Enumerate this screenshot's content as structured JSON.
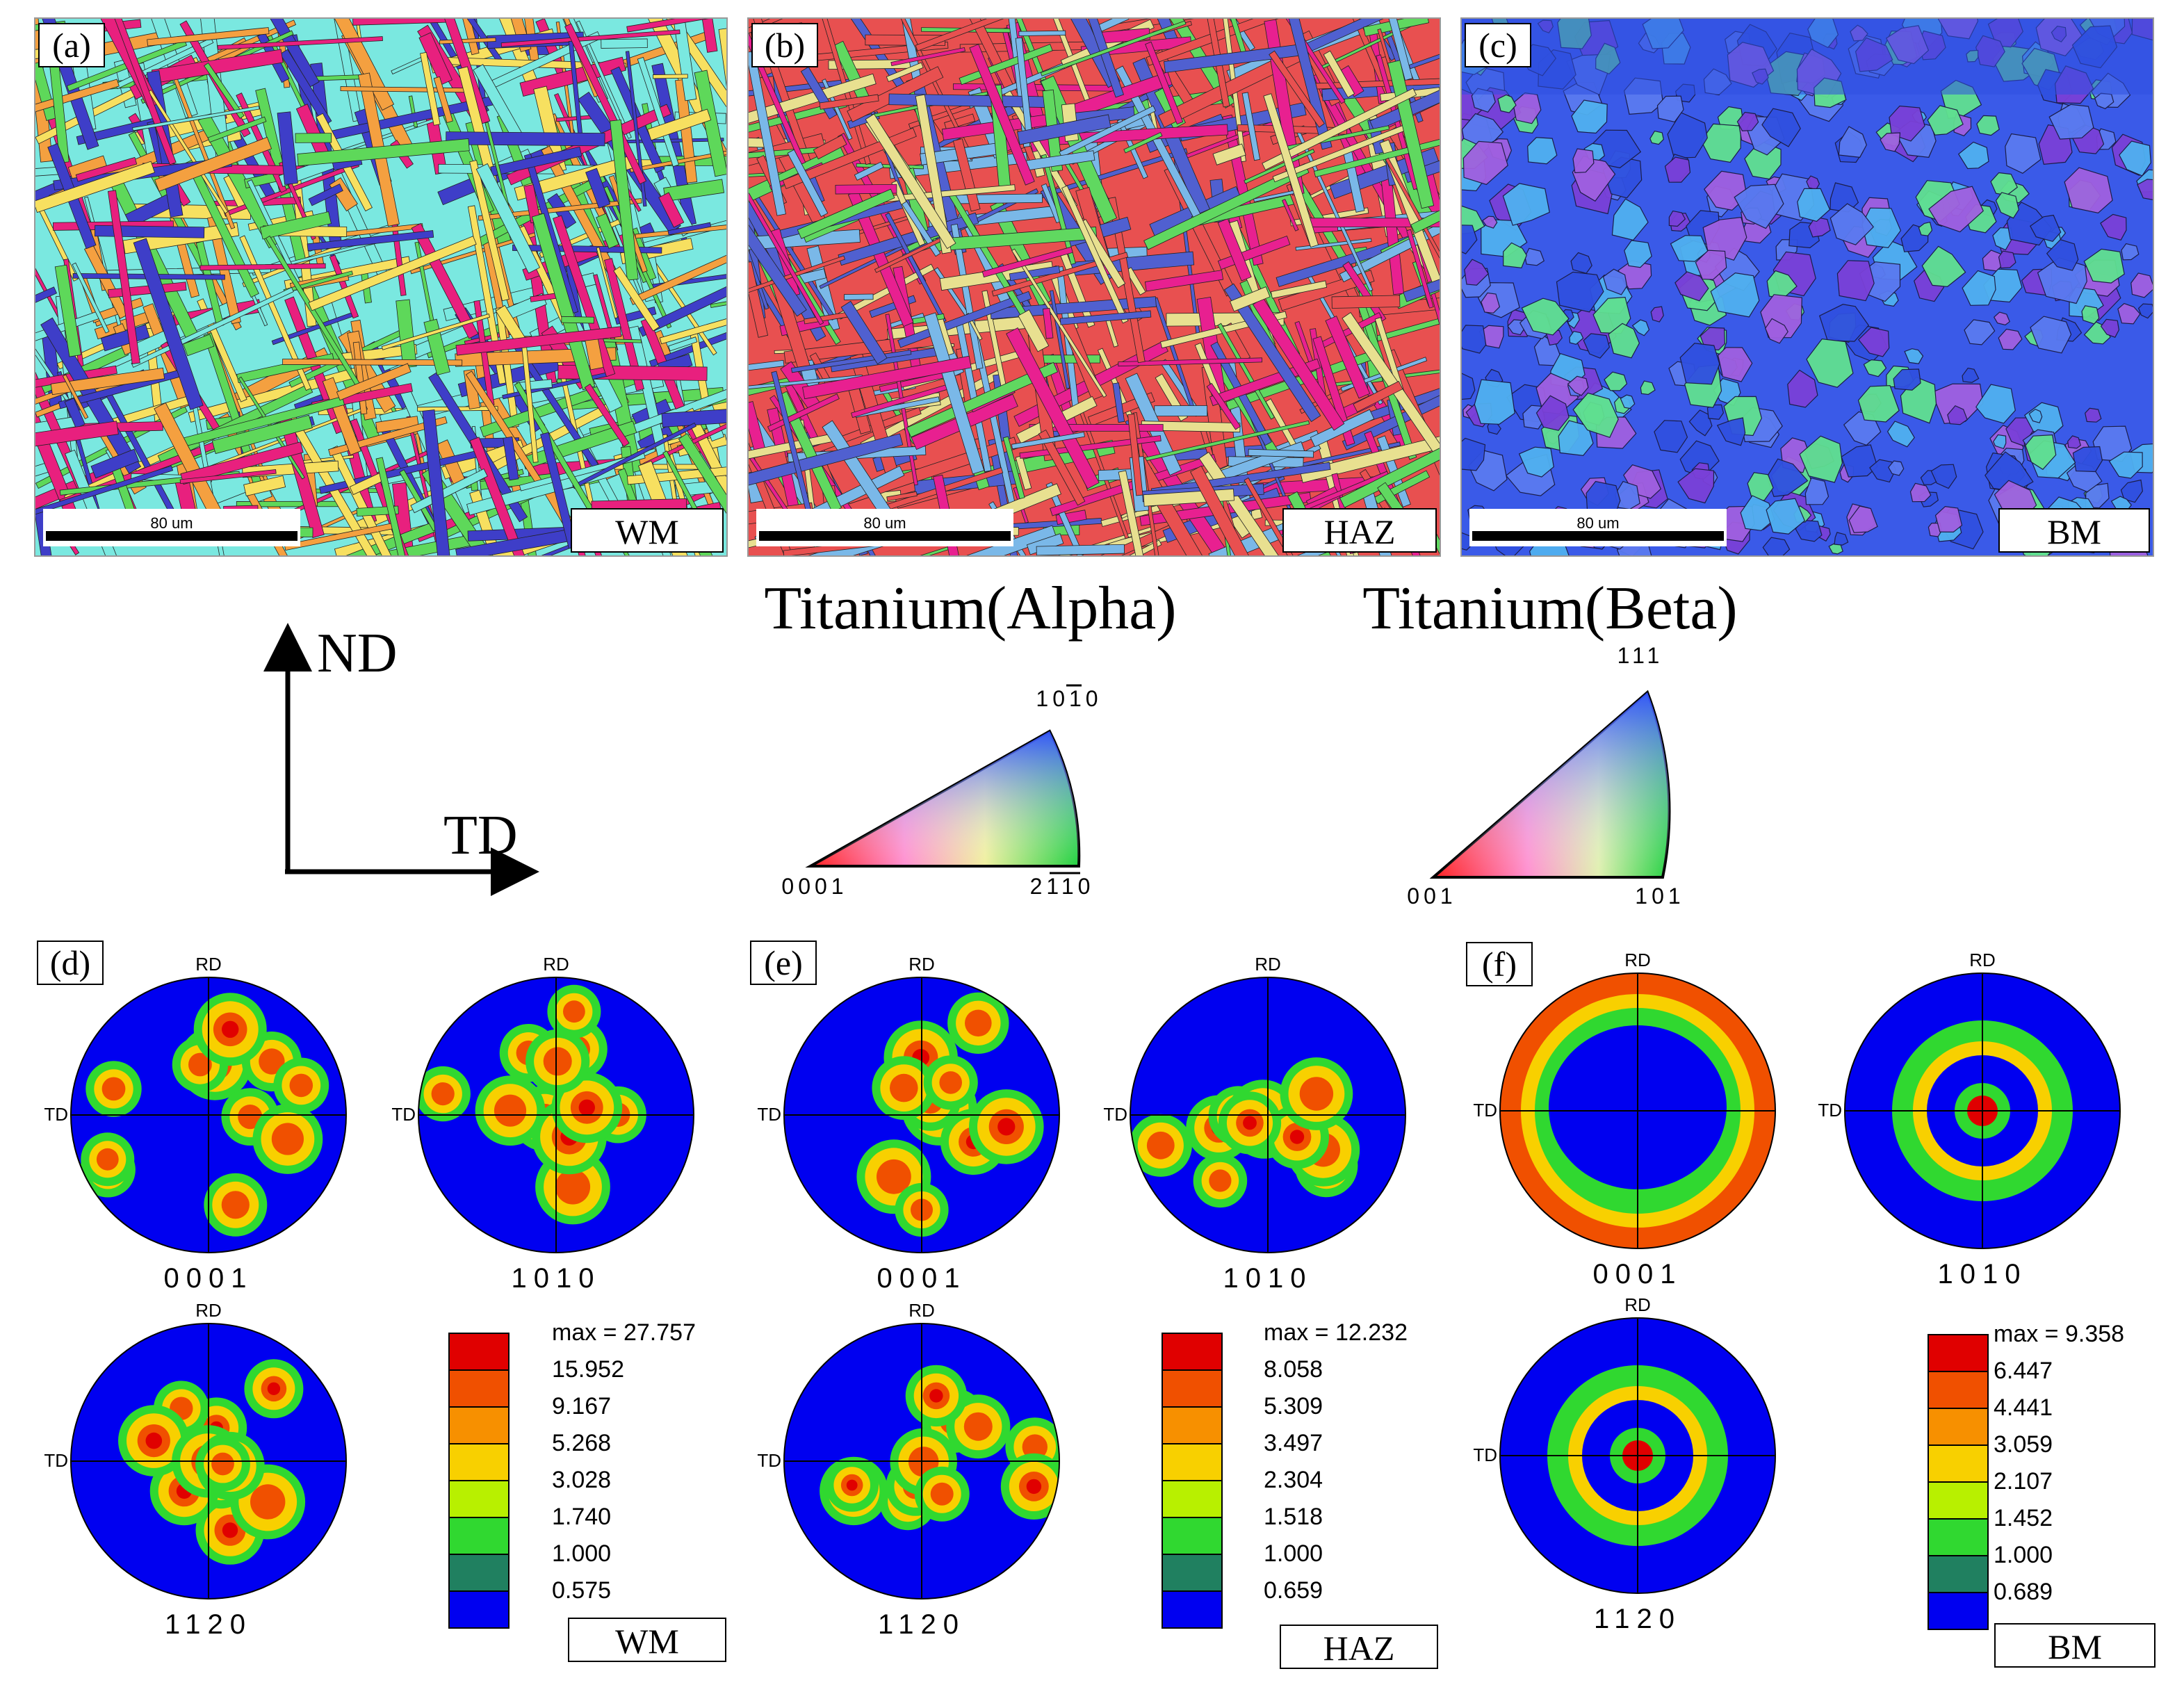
{
  "ebsd_maps": [
    {
      "id": "a",
      "panel_label": "(a)",
      "region": "WM",
      "scale_text": "80 um",
      "palette": [
        "#e8207e",
        "#5ed85a",
        "#7ae8e0",
        "#3e3ec8",
        "#f4a040",
        "#f7e060"
      ]
    },
    {
      "id": "b",
      "panel_label": "(b)",
      "region": "HAZ",
      "scale_text": "80 um",
      "palette": [
        "#e85050",
        "#e82090",
        "#7ab8e8",
        "#5060d0",
        "#60d860",
        "#e8e090"
      ]
    },
    {
      "id": "c",
      "panel_label": "(c)",
      "region": "BM",
      "scale_text": "80 um",
      "palette": [
        "#3050e0",
        "#5a7af0",
        "#50b0f0",
        "#60e090",
        "#7a40d8",
        "#a060e0"
      ]
    }
  ],
  "axes_legend": {
    "vertical": "ND",
    "horizontal": "TD"
  },
  "ipf_keys": [
    {
      "id": "alpha",
      "title": "Titanium(Alpha)",
      "corners": [
        "0001",
        "2110",
        "1010"
      ]
    },
    {
      "id": "beta",
      "title": "Titanium(Beta)",
      "corners": [
        "001",
        "101",
        "111"
      ]
    }
  ],
  "pole_figures": [
    {
      "id": "d",
      "panel_label": "(d)",
      "region": "WM",
      "figures": [
        {
          "label": "0001"
        },
        {
          "label": "1010"
        },
        {
          "label": "1120"
        }
      ],
      "rd_label": "RD",
      "td_label": "TD",
      "legend": {
        "max": "max = 27.757",
        "levels": [
          "15.952",
          "9.167",
          "5.268",
          "3.028",
          "1.740",
          "1.000",
          "0.575"
        ]
      }
    },
    {
      "id": "e",
      "panel_label": "(e)",
      "region": "HAZ",
      "figures": [
        {
          "label": "0001"
        },
        {
          "label": "1010"
        },
        {
          "label": "1120"
        }
      ],
      "rd_label": "RD",
      "td_label": "TD",
      "legend": {
        "max": "max = 12.232",
        "levels": [
          "8.058",
          "5.309",
          "3.497",
          "2.304",
          "1.518",
          "1.000",
          "0.659"
        ]
      }
    },
    {
      "id": "f",
      "panel_label": "(f)",
      "region": "BM",
      "figures": [
        {
          "label": "0001"
        },
        {
          "label": "1010"
        },
        {
          "label": "1120"
        }
      ],
      "rd_label": "RD",
      "td_label": "TD",
      "legend": {
        "max": "max = 9.358",
        "levels": [
          "6.447",
          "4.441",
          "3.059",
          "2.107",
          "1.452",
          "1.000",
          "0.689"
        ]
      }
    }
  ],
  "legend_colors": [
    "#e00000",
    "#f05000",
    "#f79000",
    "#f8d000",
    "#b8f000",
    "#30d830",
    "#208060",
    "#0000f0"
  ]
}
